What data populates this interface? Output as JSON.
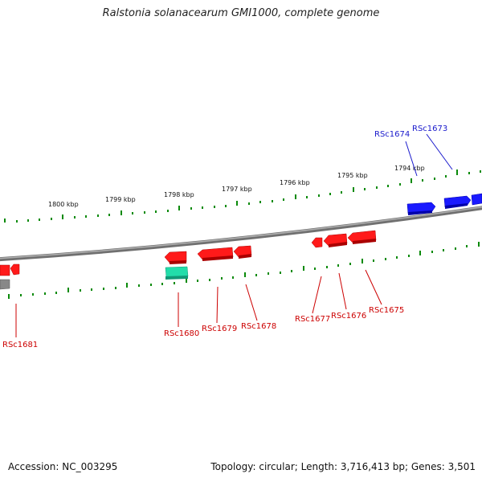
{
  "title": "Ralstonia solanacearum GMI1000, complete genome",
  "footer": {
    "accession": "Accession: NC_003295",
    "topology": "Topology: circular; Length: 3,716,413 bp; Genes: 3,501"
  },
  "scale_labels": [
    "1800 kbp",
    "1799 kbp",
    "1798 kbp",
    "1797 kbp",
    "1796 kbp",
    "1795 kbp",
    "1794 kbp"
  ],
  "gene_labels": [
    "RSc1674",
    "RSc1673",
    "RSc1681",
    "RSc1680",
    "RSc1679",
    "RSc1678",
    "RSc1677",
    "RSc1676",
    "RSc1675"
  ],
  "colors": {
    "forward_gene": "#1a1aff",
    "reverse_gene": "#ff1a1a",
    "rna_gene": "#22ddaa",
    "other_gene": "#888888",
    "backbone": "#8a8a8a",
    "tick": "#0a8a0a",
    "label_forward": "#1a1acc",
    "label_reverse": "#cc0000"
  }
}
